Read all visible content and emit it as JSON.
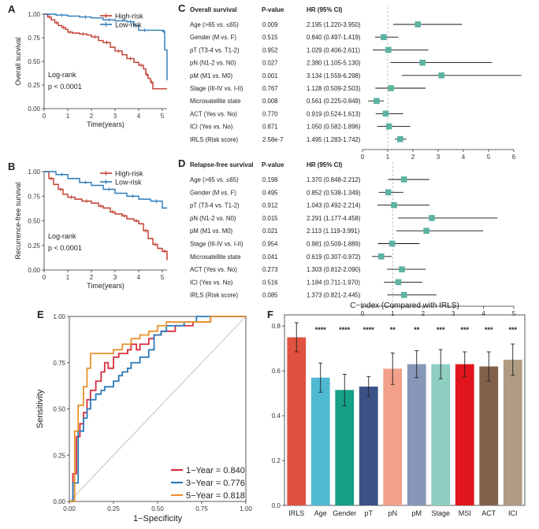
{
  "chart_data": [
    {
      "panel": "A",
      "type": "line",
      "subtype": "kaplan-meier",
      "xlabel": "Time(years)",
      "ylabel": "Overall survival",
      "xlim": [
        0,
        5.2
      ],
      "ylim": [
        0,
        1
      ],
      "xticks": [
        0,
        1,
        2,
        3,
        4,
        5
      ],
      "yticks": [
        0.0,
        0.25,
        0.5,
        0.75,
        1.0
      ],
      "legend": "top-right",
      "annotation": [
        "Log-rank",
        "p < 0.0001"
      ],
      "series": [
        {
          "name": "High-risk",
          "color": "#c0392b",
          "x": [
            0,
            0.15,
            0.3,
            0.45,
            0.6,
            0.75,
            0.9,
            1.0,
            1.2,
            1.5,
            1.8,
            2.0,
            2.3,
            2.5,
            2.8,
            3.0,
            3.3,
            3.5,
            3.8,
            4.0,
            4.2,
            4.3,
            4.4,
            4.5,
            4.6,
            5.2
          ],
          "y": [
            1,
            0.97,
            0.94,
            0.91,
            0.88,
            0.86,
            0.84,
            0.81,
            0.8,
            0.79,
            0.78,
            0.76,
            0.72,
            0.7,
            0.65,
            0.61,
            0.57,
            0.53,
            0.49,
            0.46,
            0.42,
            0.36,
            0.32,
            0.28,
            0.21,
            0.21
          ]
        },
        {
          "name": "Low-risk",
          "color": "#2a7ab9",
          "x": [
            0,
            0.5,
            1.0,
            1.5,
            2.0,
            2.5,
            3.0,
            3.5,
            3.8,
            4.0,
            4.5,
            5.0,
            5.1,
            5.2
          ],
          "y": [
            1,
            0.99,
            0.98,
            0.97,
            0.96,
            0.94,
            0.93,
            0.92,
            0.88,
            0.83,
            0.83,
            0.82,
            0.62,
            0.3
          ]
        }
      ]
    },
    {
      "panel": "B",
      "type": "line",
      "subtype": "kaplan-meier",
      "xlabel": "Time(years)",
      "ylabel": "Recurrence-free survival",
      "xlim": [
        0,
        5.2
      ],
      "ylim": [
        0,
        1
      ],
      "xticks": [
        0,
        1,
        2,
        3,
        4,
        5
      ],
      "yticks": [
        0.0,
        0.25,
        0.5,
        0.75,
        1.0
      ],
      "legend": "top-right",
      "annotation": [
        "Log-rank",
        "p < 0.0001"
      ],
      "series": [
        {
          "name": "High-risk",
          "color": "#c0392b",
          "x": [
            0,
            0.2,
            0.4,
            0.6,
            0.8,
            1.0,
            1.3,
            1.6,
            2.0,
            2.3,
            2.5,
            2.8,
            3.0,
            3.3,
            3.5,
            3.8,
            4.0,
            4.2,
            4.4,
            4.6,
            4.8,
            5.0,
            5.2
          ],
          "y": [
            1,
            0.93,
            0.87,
            0.82,
            0.77,
            0.74,
            0.72,
            0.7,
            0.68,
            0.65,
            0.63,
            0.59,
            0.57,
            0.55,
            0.52,
            0.5,
            0.47,
            0.4,
            0.32,
            0.26,
            0.22,
            0.19,
            0.1
          ]
        },
        {
          "name": "Low-risk",
          "color": "#2a7ab9",
          "x": [
            0,
            0.5,
            1.0,
            1.5,
            2.0,
            2.5,
            3.0,
            3.5,
            4.0,
            4.5,
            5.0,
            5.2
          ],
          "y": [
            1,
            0.97,
            0.93,
            0.89,
            0.86,
            0.82,
            0.78,
            0.75,
            0.72,
            0.7,
            0.63,
            0.63
          ]
        }
      ]
    },
    {
      "panel": "C",
      "type": "scatter",
      "subtype": "forest",
      "title": "Overall survival",
      "col_p": "P-value",
      "col_hr": "HR (95% CI)",
      "xlim": [
        0,
        6
      ],
      "xticks": [
        0,
        1,
        2,
        3,
        4,
        5,
        6
      ],
      "ref": 1,
      "rows": [
        {
          "label": "Age (>65 vs. ≤65)",
          "p": "0.009",
          "hr_text": "2.195 (1.220-3.950)",
          "hr": 2.195,
          "lo": 1.22,
          "hi": 3.95
        },
        {
          "label": "Gender (M vs. F)",
          "p": "0.515",
          "hr_text": "0.840 (0.497-1.419)",
          "hr": 0.84,
          "lo": 0.497,
          "hi": 1.419
        },
        {
          "label": "pT (T3-4 vs. T1-2)",
          "p": "0.952",
          "hr_text": "1.029 (0.406-2.611)",
          "hr": 1.029,
          "lo": 0.406,
          "hi": 2.611
        },
        {
          "label": "pN (N1-2 vs. N0)",
          "p": "0.027",
          "hr_text": "2.380 (1.105-5.130)",
          "hr": 2.38,
          "lo": 1.105,
          "hi": 5.13
        },
        {
          "label": "pM (M1 vs. M0)",
          "p": "0.001",
          "hr_text": "3.134 (1.559-6.298)",
          "hr": 3.134,
          "lo": 1.559,
          "hi": 6.298
        },
        {
          "label": "Stage (III-IV vs. I-II)",
          "p": "0.767",
          "hr_text": "1.128 (0.509-2.503)",
          "hr": 1.128,
          "lo": 0.509,
          "hi": 2.503
        },
        {
          "label": "Microsatellite state",
          "p": "0.008",
          "hr_text": "0.561 (0.225-0.849)",
          "hr": 0.561,
          "lo": 0.225,
          "hi": 0.849
        },
        {
          "label": "ACT (Yes vs. No)",
          "p": "0.770",
          "hr_text": "0.919 (0.524-1.613)",
          "hr": 0.919,
          "lo": 0.524,
          "hi": 1.613
        },
        {
          "label": "ICI (Yes vs. No)",
          "p": "0.871",
          "hr_text": "1.050 (0.582-1.896)",
          "hr": 1.05,
          "lo": 0.582,
          "hi": 1.896
        },
        {
          "label": "IRLS (Risk score)",
          "p": "2.58e-7",
          "hr_text": "1.495 (1.283-1.742)",
          "hr": 1.495,
          "lo": 1.283,
          "hi": 1.742
        }
      ]
    },
    {
      "panel": "D",
      "type": "scatter",
      "subtype": "forest",
      "title": "Relapse-free survival",
      "col_p": "P-value",
      "col_hr": "HR (95% CI)",
      "xlim": [
        0,
        5
      ],
      "xticks": [
        0,
        1,
        2,
        3,
        4,
        5
      ],
      "ref": 1,
      "rows": [
        {
          "label": "Age (>65 vs. ≤65)",
          "p": "0.198",
          "hr_text": "1.370 (0.848-2.212)",
          "hr": 1.37,
          "lo": 0.848,
          "hi": 2.212
        },
        {
          "label": "Gender (M vs. F)",
          "p": "0.495",
          "hr_text": "0.852 (0.538-1.349)",
          "hr": 0.852,
          "lo": 0.538,
          "hi": 1.349
        },
        {
          "label": "pT (T3-4 vs. T1-2)",
          "p": "0.912",
          "hr_text": "1.043 (0.492-2.214)",
          "hr": 1.043,
          "lo": 0.492,
          "hi": 2.214
        },
        {
          "label": "pN (N1-2 vs. N0)",
          "p": "0.015",
          "hr_text": "2.291 (1.177-4.458)",
          "hr": 2.291,
          "lo": 1.177,
          "hi": 4.458
        },
        {
          "label": "pM (M1 vs. M0)",
          "p": "0.021",
          "hr_text": "2.113 (1.119-3.991)",
          "hr": 2.113,
          "lo": 1.119,
          "hi": 3.991
        },
        {
          "label": "Stage (III-IV vs. I-II)",
          "p": "0.954",
          "hr_text": "0.981 (0.509-1.889)",
          "hr": 0.981,
          "lo": 0.509,
          "hi": 1.889
        },
        {
          "label": "Microsatellite state",
          "p": "0.041",
          "hr_text": "0.619 (0.307-0.972)",
          "hr": 0.619,
          "lo": 0.307,
          "hi": 0.972
        },
        {
          "label": "ACT (Yes vs. No)",
          "p": "0.273",
          "hr_text": "1.303 (0.812-2.090)",
          "hr": 1.303,
          "lo": 0.812,
          "hi": 2.09
        },
        {
          "label": "ICI (Yes vs. No)",
          "p": "0.516",
          "hr_text": "1.184 (0.711-1.970)",
          "hr": 1.184,
          "lo": 0.711,
          "hi": 1.97
        },
        {
          "label": "IRLS (Risk score)",
          "p": "0.085",
          "hr_text": "1.373 (0.821-2.445)",
          "hr": 1.373,
          "lo": 0.821,
          "hi": 2.445
        }
      ]
    },
    {
      "panel": "E",
      "type": "line",
      "subtype": "roc",
      "xlabel": "1−Specificity",
      "ylabel": "Sensitivity",
      "xlim": [
        0,
        1
      ],
      "ylim": [
        0,
        1
      ],
      "xticks": [
        0.0,
        0.25,
        0.5,
        0.75,
        1.0
      ],
      "yticks": [
        0.0,
        0.25,
        0.5,
        0.75,
        1.0
      ],
      "legend": "bottom-right",
      "series": [
        {
          "name": "1−Year = 0.840",
          "color": "#d62e3e",
          "x": [
            0,
            0.02,
            0.04,
            0.06,
            0.08,
            0.1,
            0.12,
            0.15,
            0.18,
            0.2,
            0.22,
            0.25,
            0.28,
            0.3,
            0.33,
            0.35,
            0.38,
            0.4,
            0.45,
            0.48,
            0.52,
            0.55,
            0.6,
            0.65,
            0.7,
            0.75,
            0.8,
            0.85,
            0.9,
            1.0
          ],
          "y": [
            0,
            0.15,
            0.35,
            0.42,
            0.48,
            0.55,
            0.6,
            0.65,
            0.7,
            0.75,
            0.72,
            0.78,
            0.8,
            0.8,
            0.82,
            0.85,
            0.82,
            0.85,
            0.88,
            0.9,
            0.92,
            0.92,
            0.95,
            0.95,
            0.97,
            0.97,
            1.0,
            1.0,
            1.0,
            1.0
          ]
        },
        {
          "name": "3−Year = 0.776",
          "color": "#2a7ab9",
          "x": [
            0,
            0.02,
            0.05,
            0.08,
            0.1,
            0.12,
            0.15,
            0.18,
            0.2,
            0.25,
            0.28,
            0.3,
            0.33,
            0.35,
            0.4,
            0.45,
            0.48,
            0.52,
            0.55,
            0.6,
            0.65,
            0.7,
            0.72,
            0.8,
            0.9,
            1.0
          ],
          "y": [
            0,
            0.1,
            0.38,
            0.45,
            0.5,
            0.55,
            0.58,
            0.6,
            0.62,
            0.65,
            0.68,
            0.7,
            0.72,
            0.75,
            0.78,
            0.82,
            0.9,
            0.92,
            0.95,
            0.95,
            0.97,
            0.97,
            1.0,
            1.0,
            1.0,
            1.0
          ]
        },
        {
          "name": "5−Year = 0.818",
          "color": "#e8922e",
          "x": [
            0,
            0.03,
            0.05,
            0.08,
            0.1,
            0.12,
            0.15,
            0.2,
            0.25,
            0.3,
            0.35,
            0.4,
            0.45,
            0.5,
            0.55,
            0.6,
            0.7,
            0.8,
            0.9,
            1.0
          ],
          "y": [
            0,
            0.38,
            0.52,
            0.62,
            0.72,
            0.8,
            0.8,
            0.8,
            0.82,
            0.85,
            0.88,
            0.9,
            0.92,
            0.95,
            0.97,
            0.97,
            0.97,
            1.0,
            1.0,
            1.0
          ]
        }
      ]
    },
    {
      "panel": "F",
      "type": "bar",
      "title": "C−index (Compared with IRLS)",
      "categories": [
        "IRLS",
        "Age",
        "Gender",
        "pT",
        "pN",
        "pM",
        "Stage",
        "MSI",
        "ACT",
        "ICI"
      ],
      "values": [
        0.75,
        0.57,
        0.515,
        0.53,
        0.61,
        0.63,
        0.63,
        0.63,
        0.62,
        0.65
      ],
      "err": [
        0.065,
        0.065,
        0.07,
        0.045,
        0.07,
        0.06,
        0.065,
        0.055,
        0.065,
        0.07
      ],
      "signif": [
        "",
        "****",
        "****",
        "****",
        "**",
        "**",
        "***",
        "***",
        "***",
        "***"
      ],
      "colors": [
        "#e0523f",
        "#4fb9d1",
        "#16a085",
        "#3b5287",
        "#f2a08a",
        "#8896b8",
        "#8fcfc1",
        "#e0151e",
        "#82614a",
        "#b09c82"
      ],
      "ylim": [
        0,
        0.85
      ],
      "yticks": [
        0.0,
        0.2,
        0.4,
        0.6,
        0.8
      ]
    }
  ]
}
